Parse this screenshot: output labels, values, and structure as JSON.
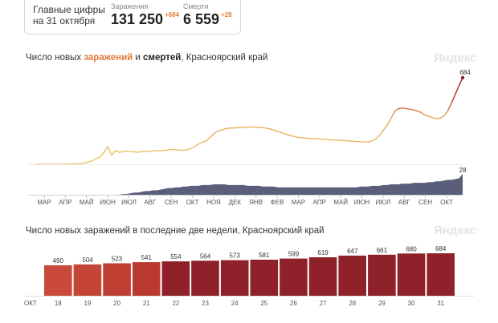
{
  "summary": {
    "headline_line1": "Главные цифры",
    "headline_line2": "на 31 октября",
    "infections": {
      "label": "Заражения",
      "value": "131 250",
      "delta": "+684"
    },
    "deaths": {
      "label": "Смерти",
      "value": "6 559",
      "delta": "+28"
    }
  },
  "brand": "Яндекс",
  "colors": {
    "orange": "#e07b39",
    "red": "#c0392b",
    "dark_red": "#8e2129",
    "deaths_fill": "#5a5e7a"
  },
  "chart_data": [
    {
      "type": "line",
      "title_parts": {
        "prefix": "Число новых ",
        "infections": "заражений",
        "middle": " и ",
        "deaths": "смертей",
        "suffix": ", Красноярский край"
      },
      "x_tick_labels": [
        "МАР",
        "АПР",
        "МАЙ",
        "ИЮН",
        "ИЮЛ",
        "АВГ",
        "СЕН",
        "ОКТ",
        "НОЯ",
        "ДЕК",
        "ЯНВ",
        "ФЕВ",
        "МАР",
        "АПР",
        "МАЙ",
        "ИЮН",
        "ИЮЛ",
        "АВГ",
        "СЕН",
        "ОКТ"
      ],
      "series": [
        {
          "values": [
            0,
            0,
            0,
            0,
            0,
            0,
            0,
            0,
            1,
            2,
            3,
            5,
            8,
            12,
            20,
            30,
            45,
            60,
            95,
            140,
            70,
            110,
            95,
            100,
            105,
            100,
            98,
            96,
            100,
            102,
            103,
            105,
            107,
            108,
            110,
            115,
            118,
            115,
            112,
            110,
            115,
            125,
            140,
            160,
            175,
            185,
            210,
            240,
            260,
            270,
            280,
            285,
            287,
            288,
            290,
            292,
            293,
            294,
            295,
            292,
            290,
            285,
            280,
            270,
            260,
            250,
            240,
            230,
            222,
            215,
            210,
            208,
            206,
            204,
            202,
            200,
            198,
            196,
            194,
            192,
            190,
            188,
            186,
            184,
            182,
            180,
            178,
            176,
            178,
            185,
            200,
            230,
            270,
            310,
            360,
            420,
            440,
            445,
            440,
            435,
            430,
            420,
            410,
            390,
            380,
            370,
            360,
            365,
            380,
            420,
            480,
            550,
            620,
            684
          ],
          "last_label": "684"
        },
        {
          "values": [
            0,
            0,
            0,
            0,
            0,
            0,
            0,
            0,
            0,
            0,
            0,
            0,
            0,
            0,
            0,
            0,
            0,
            0,
            0,
            0,
            0,
            0,
            0,
            1,
            1,
            2,
            3,
            3,
            4,
            5,
            5,
            6,
            6,
            7,
            8,
            9,
            9,
            10,
            10,
            11,
            11,
            12,
            12,
            12,
            13,
            13,
            13,
            14,
            14,
            14,
            14,
            13,
            13,
            13,
            13,
            13,
            12,
            12,
            12,
            12,
            11,
            11,
            11,
            11,
            10,
            10,
            10,
            10,
            10,
            10,
            10,
            10,
            10,
            10,
            10,
            10,
            10,
            10,
            10,
            10,
            10,
            10,
            10,
            10,
            10,
            10,
            11,
            11,
            11,
            12,
            12,
            12,
            13,
            13,
            14,
            14,
            14,
            15,
            15,
            15,
            16,
            16,
            16,
            16,
            17,
            17,
            18,
            18,
            19,
            20,
            20,
            21,
            22,
            28
          ],
          "last_label": "28"
        }
      ]
    },
    {
      "type": "bar",
      "title": "Число новых заражений в последние две недели, Красноярский край",
      "month_label": "ОКТ",
      "categories": [
        "18",
        "19",
        "20",
        "21",
        "22",
        "23",
        "24",
        "25",
        "26",
        "27",
        "28",
        "29",
        "30",
        "31"
      ],
      "values": [
        490,
        504,
        523,
        541,
        554,
        564,
        573,
        581,
        599,
        619,
        647,
        661,
        680,
        684
      ],
      "value_labels": [
        "490",
        "504",
        "523",
        "541",
        "554",
        "564",
        "573",
        "581",
        "599",
        "619",
        "647",
        "661",
        "680",
        "684"
      ],
      "weekend": [
        false,
        false,
        false,
        false,
        false,
        true,
        true,
        false,
        false,
        false,
        false,
        false,
        true,
        true
      ],
      "ylim": [
        0,
        684
      ]
    }
  ]
}
